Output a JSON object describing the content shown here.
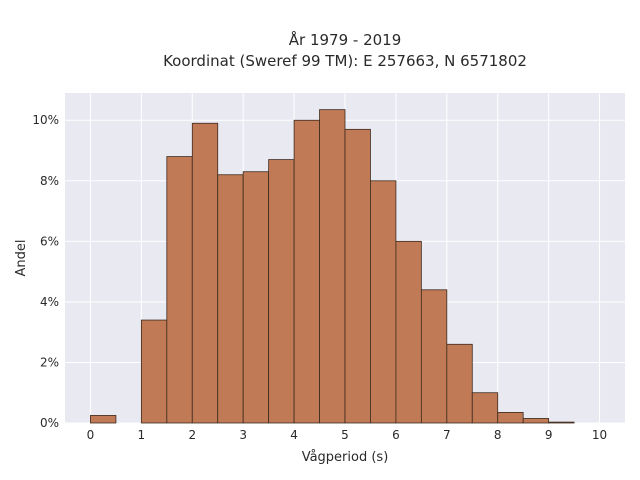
{
  "chart_data": {
    "type": "bar",
    "title_line1": "År 1979 - 2019",
    "title_line2": "Koordinat (Sweref 99 TM): E 257663, N 6571802",
    "xlabel": "Vågperiod (s)",
    "ylabel": "Andel",
    "bin_width": 0.5,
    "bins": [
      0,
      0.5,
      1,
      1.5,
      2,
      2.5,
      3,
      3.5,
      4,
      4.5,
      5,
      5.5,
      6,
      6.5,
      7,
      7.5,
      8,
      8.5,
      9,
      9.5
    ],
    "values": [
      0.25,
      0,
      3.4,
      8.8,
      9.9,
      8.2,
      8.3,
      8.7,
      10.0,
      10.35,
      9.7,
      8.0,
      6.0,
      4.4,
      2.6,
      1.0,
      0.35,
      0.15,
      0.03,
      0
    ],
    "xlim": [
      -0.5,
      10.5
    ],
    "ylim": [
      0,
      10.9
    ],
    "x_ticks": [
      "0",
      "1",
      "2",
      "3",
      "4",
      "5",
      "6",
      "7",
      "8",
      "9",
      "10"
    ],
    "y_ticks": [
      "0%",
      "2%",
      "4%",
      "6%",
      "8%",
      "10%"
    ],
    "grid": true,
    "colors": {
      "bar": "#c07a55",
      "bar_edge": "#3d2a1e",
      "plot_bg": "#e9e9f2",
      "grid": "#ffffff"
    }
  }
}
